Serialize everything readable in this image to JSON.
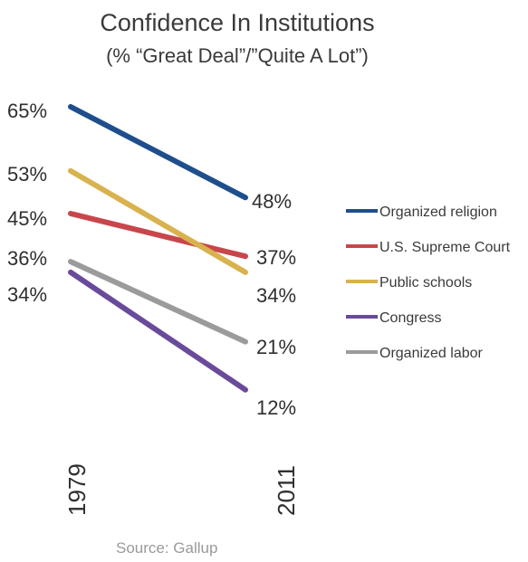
{
  "chart_data": {
    "type": "line",
    "title": "Confidence In Institutions",
    "subtitle": "(% “Great Deal”/”Quite A Lot”)",
    "x": [
      "1979",
      "2011"
    ],
    "series": [
      {
        "name": "Organized religion",
        "values": [
          65,
          48
        ],
        "color": "#1f4e8c"
      },
      {
        "name": "U.S. Supreme Court",
        "values": [
          45,
          37
        ],
        "color": "#c8464b"
      },
      {
        "name": "Public schools",
        "values": [
          53,
          34
        ],
        "color": "#d8b24e"
      },
      {
        "name": "Congress",
        "values": [
          34,
          12
        ],
        "color": "#6a4a9a"
      },
      {
        "name": "Organized labor",
        "values": [
          36,
          21
        ],
        "color": "#9b9b9b"
      }
    ],
    "start_labels": [
      "65%",
      "53%",
      "45%",
      "36%",
      "34%"
    ],
    "end_labels": [
      "48%",
      "37%",
      "34%",
      "21%",
      "12%"
    ],
    "legend_position": "right",
    "grid": false,
    "source": "Source: Gallup"
  }
}
